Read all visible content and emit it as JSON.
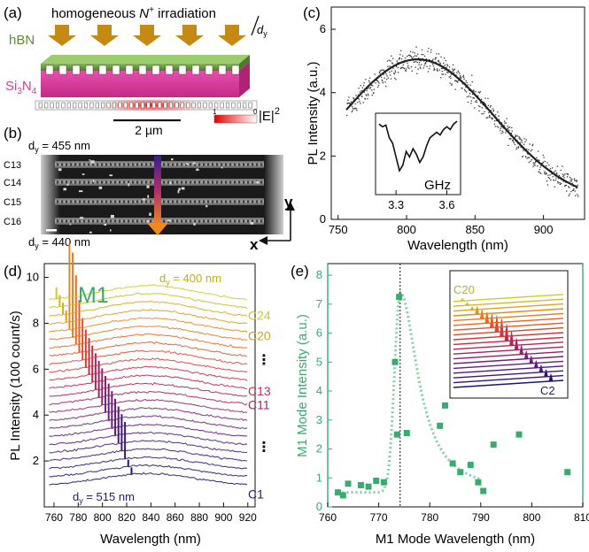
{
  "panel_a": {
    "label": "(a)",
    "title_prefix": "homogeneous ",
    "title_ion": "N",
    "title_ion_sup": "+",
    "title_suffix": " irradiation",
    "hbn_label": "hBN",
    "substrate_label": "Si",
    "substrate_sub1": "3",
    "substrate_mid": "N",
    "substrate_sub2": "4",
    "dy_label": "d",
    "dy_sub": "y",
    "scale_label": "2 µm",
    "field_label": "|E|",
    "field_sup": "2",
    "cbar_min": "1",
    "cbar_max": "0",
    "colors": {
      "hbn": "#5e8a3a",
      "sin": "#d9399a",
      "arrow": "#c48a14"
    }
  },
  "panel_b": {
    "label": "(b)",
    "dy_top": "d",
    "dy_top_sub": "y",
    "dy_top_value": " = 455 nm",
    "dy_bottom": "d",
    "dy_bottom_sub": "y",
    "dy_bottom_value": " = 440 nm",
    "rows": [
      "C13",
      "C14",
      "C15",
      "C16"
    ],
    "axis_x": "x",
    "axis_y": "y"
  },
  "chart_data": [
    {
      "panel": "(c)",
      "type": "scatter",
      "xlabel": "Wavelength (nm)",
      "ylabel": "PL Intensity (a.u.)",
      "xlim": [
        745,
        930
      ],
      "ylim": [
        0,
        6.7
      ],
      "xticks": [
        750,
        800,
        850,
        900
      ],
      "yticks": [
        0,
        2,
        4,
        6
      ],
      "fit": {
        "shape": "gaussian",
        "peak_x": 808,
        "peak_y": 5.05,
        "baseline": 0.5,
        "sigma": 56
      },
      "inset": {
        "xlabel": "GHz",
        "xticks": [
          "3.3",
          "3.6"
        ],
        "dips_ghz": [
          3.33,
          3.45
        ]
      }
    },
    {
      "panel": "(d)",
      "type": "line",
      "xlabel": "Wavelength (nm)",
      "ylabel": "PL Intensity (100 count/s)",
      "xlim": [
        752,
        926
      ],
      "ylim": [
        0,
        10.6
      ],
      "xticks": [
        760,
        780,
        800,
        820,
        840,
        860,
        880,
        900,
        920
      ],
      "yticks": [
        2,
        4,
        6,
        8,
        10
      ],
      "mode_label": "M1",
      "top_annotation": "d",
      "top_annotation_sub": "y",
      "top_annotation_value": " = 400 nm",
      "bottom_annotation": "d",
      "bottom_annotation_sub": "y",
      "bottom_annotation_value": " = 515 nm",
      "right_labels": [
        {
          "text": "C24",
          "y": 8.35
        },
        {
          "text": "C20",
          "y": 7.45
        },
        {
          "text": "C13",
          "y": 5.05
        },
        {
          "text": "C11",
          "y": 4.45
        },
        {
          "text": "C1",
          "y": 0.55
        }
      ],
      "dots_labels": [
        {
          "text": "⋮",
          "y": 6.4
        },
        {
          "text": "⋮",
          "y": 2.6
        }
      ],
      "series_count": 24,
      "series_spacing": 0.35,
      "broad_peak_x": 838,
      "mode_peak_first_nm": 824,
      "mode_peak_last_nm": 762
    },
    {
      "panel": "(e)",
      "type": "scatter",
      "xlabel": "M1 Mode Wavelength (nm)",
      "ylabel": "M1 Mode Intensity (a.u.)",
      "xlim": [
        760,
        810
      ],
      "ylim": [
        0,
        8.4
      ],
      "xticks": [
        760,
        770,
        780,
        790,
        800,
        810
      ],
      "yticks": [
        0,
        1,
        2,
        3,
        4,
        5,
        6,
        7,
        8
      ],
      "vline_x": 774.2,
      "points": [
        [
          762,
          0.5
        ],
        [
          763,
          0.4
        ],
        [
          764,
          0.8
        ],
        [
          766.5,
          0.75
        ],
        [
          768,
          0.7
        ],
        [
          769.5,
          0.9
        ],
        [
          771,
          0.85
        ],
        [
          773.2,
          5.0
        ],
        [
          773.6,
          2.5
        ],
        [
          774.0,
          7.25
        ],
        [
          775.5,
          2.55
        ],
        [
          782,
          2.8
        ],
        [
          783,
          3.5
        ],
        [
          784.5,
          1.5
        ],
        [
          786,
          1.2
        ],
        [
          788,
          1.45
        ],
        [
          789.5,
          0.85
        ],
        [
          790.5,
          0.55
        ],
        [
          792.5,
          2.15
        ],
        [
          797.5,
          2.5
        ],
        [
          807,
          1.2
        ]
      ],
      "fit_curve": "lorentzian",
      "inset": {
        "top_label": "C20",
        "bottom_label": "C2"
      }
    }
  ],
  "colors": {
    "green": "#3aab6e",
    "pale_green": "#7fd0a0",
    "fit": "#222222"
  }
}
